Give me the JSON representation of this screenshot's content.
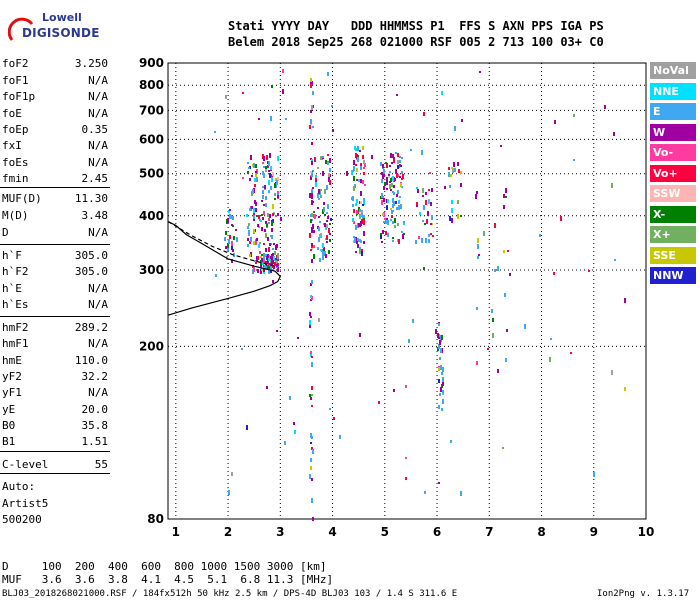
{
  "logo": {
    "line1": "Lowell",
    "line2": "DIGISONDE"
  },
  "header": {
    "line1": "Stati YYYY DAY   DDD HHMMSS P1  FFS S AXN PPS IGA PS",
    "line2": "Belem 2018 Sep25 268 021000 RSF 005 2 713 100 03+ C0"
  },
  "params": [
    {
      "k": "foF2",
      "v": "3.250"
    },
    {
      "k": "foF1",
      "v": "N/A"
    },
    {
      "k": "foF1p",
      "v": "N/A"
    },
    {
      "k": "foE",
      "v": "N/A"
    },
    {
      "k": "foEp",
      "v": "0.35"
    },
    {
      "k": "fxI",
      "v": "N/A"
    },
    {
      "k": "foEs",
      "v": "N/A"
    },
    {
      "k": "fmin",
      "v": "2.45"
    },
    {
      "k": "MUF(D)",
      "v": "11.30"
    },
    {
      "k": "M(D)",
      "v": "3.48"
    },
    {
      "k": "D",
      "v": "N/A"
    },
    {
      "k": "h`F",
      "v": "305.0"
    },
    {
      "k": "h`F2",
      "v": "305.0"
    },
    {
      "k": "h`E",
      "v": "N/A"
    },
    {
      "k": "h`Es",
      "v": "N/A"
    },
    {
      "k": "hmF2",
      "v": "289.2"
    },
    {
      "k": "hmF1",
      "v": "N/A"
    },
    {
      "k": "hmE",
      "v": "110.0"
    },
    {
      "k": "yF2",
      "v": "32.2"
    },
    {
      "k": "yF1",
      "v": "N/A"
    },
    {
      "k": "yE",
      "v": "20.0"
    },
    {
      "k": "B0",
      "v": "35.8"
    },
    {
      "k": "B1",
      "v": "1.51"
    },
    {
      "k": "C-level",
      "v": "55"
    }
  ],
  "auto": {
    "l1": "Auto:",
    "l2": "Artist5",
    "l3": "500200"
  },
  "legend": [
    {
      "label": "NoVal",
      "color": "#a0a0a0"
    },
    {
      "label": "NNE",
      "color": "#00e0ff"
    },
    {
      "label": "E",
      "color": "#40a8f0"
    },
    {
      "label": "W",
      "color": "#a000a0"
    },
    {
      "label": "Vo-",
      "color": "#ff3aa0"
    },
    {
      "label": "Vo+",
      "color": "#ff0040"
    },
    {
      "label": "SSW",
      "color": "#ffb4b4"
    },
    {
      "label": "X-",
      "color": "#008000"
    },
    {
      "label": "X+",
      "color": "#70b060"
    },
    {
      "label": "SSE",
      "color": "#c8c800"
    },
    {
      "label": "NNW",
      "color": "#2020d0"
    }
  ],
  "footer": {
    "row_d": "D     100  200  400  600  800 1000 1500 3000 [km]",
    "row_muf": "MUF   3.6  3.6  3.8  4.1  4.5  5.1  6.8 11.3 [MHz]",
    "file": "BLJ03_2018268021000.RSF / 184fx512h 50 kHz 2.5 km / DPS-4D BLJ03 103 / 1.4 S 311.6 E",
    "version": "Ion2Png v. 1.3.17"
  },
  "chart_data": {
    "type": "scatter",
    "xlim": [
      0.85,
      10
    ],
    "ylim": [
      80,
      900
    ],
    "x_ticks": [
      1,
      2,
      3,
      4,
      5,
      6,
      7,
      8,
      9,
      10
    ],
    "x_tick_labels": [
      "1",
      "2",
      "3",
      "4",
      "5",
      "6",
      "7",
      "8",
      "9",
      "10"
    ],
    "y_ticks": [
      80,
      200,
      300,
      400,
      500,
      600,
      700,
      800,
      900
    ],
    "y_tick_labels": [
      "80",
      "200",
      "300",
      "400",
      "500",
      "600",
      "700",
      "800",
      "900"
    ],
    "y_scale": "log",
    "grid": true,
    "legend_position": "right",
    "clusters": [
      {
        "x": [
          1.9,
          2.15
        ],
        "y": [
          310,
          420
        ],
        "density": 25
      },
      {
        "x": [
          2.35,
          2.95
        ],
        "y": [
          300,
          560
        ],
        "density": 170
      },
      {
        "x": [
          2.6,
          2.95
        ],
        "y": [
          300,
          330
        ],
        "density": 60
      },
      {
        "x": [
          3.55,
          3.95
        ],
        "y": [
          320,
          560
        ],
        "density": 90
      },
      {
        "x": [
          4.35,
          4.6
        ],
        "y": [
          330,
          590
        ],
        "density": 90
      },
      {
        "x": [
          4.9,
          5.35
        ],
        "y": [
          350,
          560
        ],
        "density": 110
      },
      {
        "x": [
          5.55,
          5.9
        ],
        "y": [
          350,
          470
        ],
        "density": 30
      },
      {
        "x": [
          6.2,
          6.45
        ],
        "y": [
          380,
          560
        ],
        "density": 20
      },
      {
        "x": [
          6.0,
          6.1
        ],
        "y": [
          140,
          230
        ],
        "density": 30
      },
      {
        "x": [
          6.7,
          7.4
        ],
        "y": [
          160,
          500
        ],
        "density": 25
      },
      {
        "x": [
          3.55,
          3.6
        ],
        "y": [
          80,
          900
        ],
        "density": 60
      },
      {
        "x": [
          1.5,
          9.8
        ],
        "y": [
          90,
          880
        ],
        "density": 90
      }
    ],
    "profile_curve": [
      [
        0.85,
        236
      ],
      [
        1.3,
        245
      ],
      [
        2.0,
        258
      ],
      [
        2.5,
        268
      ],
      [
        2.8,
        276
      ],
      [
        2.95,
        282
      ],
      [
        3.0,
        290
      ],
      [
        2.9,
        298
      ],
      [
        2.5,
        306
      ],
      [
        2.0,
        318
      ],
      [
        1.5,
        345
      ],
      [
        1.2,
        362
      ],
      [
        1.0,
        380
      ],
      [
        0.85,
        388
      ]
    ],
    "trace_curve": [
      [
        0.85,
        388
      ],
      [
        1.3,
        360
      ],
      [
        1.7,
        340
      ],
      [
        2.1,
        325
      ],
      [
        2.5,
        315
      ],
      [
        2.9,
        306
      ]
    ]
  }
}
